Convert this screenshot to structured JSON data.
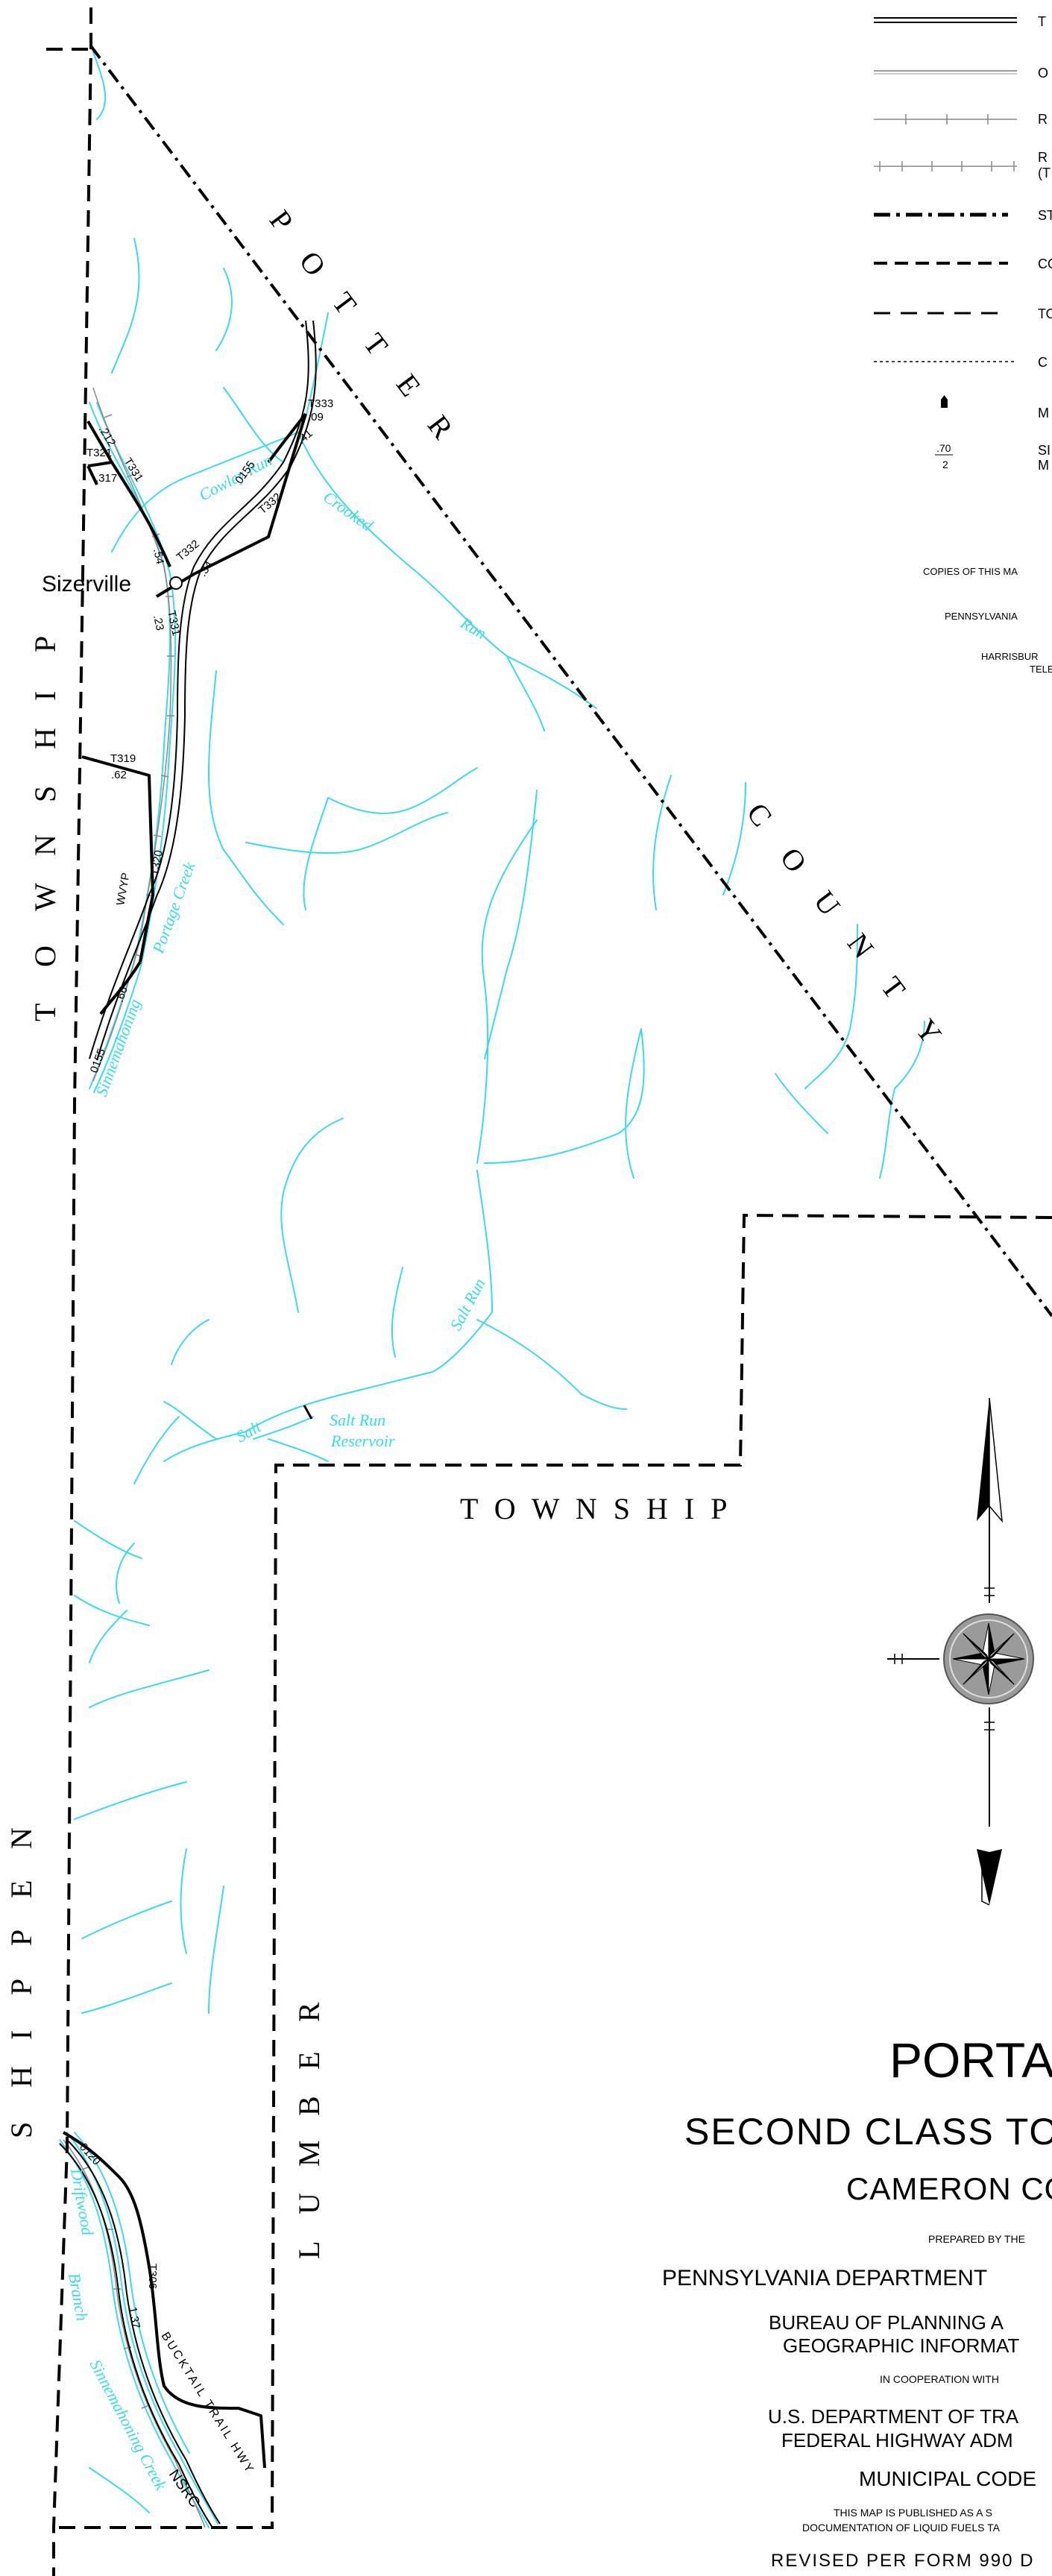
{
  "places": {
    "sizerville": "Sizerville"
  },
  "boundary_labels": {
    "potter": [
      "P",
      "O",
      "T",
      "T",
      "E",
      "R"
    ],
    "county": [
      "C",
      "O",
      "U",
      "N",
      "T",
      "Y"
    ],
    "township_left": [
      "T",
      "O",
      "W",
      "N",
      "S",
      "H",
      "I",
      "P"
    ],
    "township_center": "T O W N S H I P",
    "shippen": [
      "S",
      "H",
      "I",
      "P",
      "P",
      "E",
      "N"
    ],
    "lumber": [
      "L",
      "U",
      "M",
      "B",
      "E",
      "R"
    ]
  },
  "streams": {
    "cowley_run": "Cowley Run",
    "crooked": "Crooked",
    "run_crooked": "Run",
    "portage_creek": "Portage Creek",
    "sinnemahoning": "Sinnemahoning",
    "salt_run": "Salt Run",
    "salt": "Salt",
    "salt_run_reservoir_1": "Salt Run",
    "salt_run_reservoir_2": "Reservoir",
    "driftwood": "Driftwood",
    "branch": "Branch",
    "sinnemahoning_creek": "Sinnemahoning Creek"
  },
  "road_labels": {
    "r212": ".212",
    "t331a": "T331",
    "t321": "T321",
    "r317": ".317",
    "r54": ".54",
    "t333": "T333",
    "r09": ".09",
    "r41": ".41",
    "r0155a": "0155",
    "t332a": "T332",
    "t332b": "T332",
    "r34": ".34",
    "t331b": "T331",
    "r23": ".23",
    "t319": "T319",
    "r62": ".62",
    "wvyp": "WVYP",
    "t320": "T320",
    "r66": ".66",
    "r0155b": "0155",
    "r0120": "0120",
    "t306": "T306",
    "r137": "1.37",
    "bucktail": "BUCKTAIL TRAIL HWY",
    "nsrc": "NSRC"
  },
  "legend": {
    "items": [
      "T",
      "O",
      "R",
      "R\n(T",
      "ST",
      "CO",
      "TO",
      "C",
      "M",
      "SI\nM"
    ],
    "sample_number_top": ".70",
    "sample_number_bottom": "2",
    "copies_line": "COPIES OF THIS MA",
    "agency_line": "PENNSYLVANIA",
    "address_line1": "HARRISBUR",
    "address_line2": "TELE"
  },
  "title_block": {
    "title": "PORTAG",
    "subtitle": "SECOND CLASS TO",
    "county": "CAMERON CO",
    "prepared_by": "PREPARED BY THE",
    "department": "PENNSYLVANIA DEPARTMENT",
    "bureau_1": "BUREAU OF PLANNING A",
    "bureau_2": "GEOGRAPHIC INFORMAT",
    "cooperation": "IN COOPERATION WITH",
    "usdot": "U.S. DEPARTMENT OF TRA",
    "fhwa": "FEDERAL HIGHWAY ADM",
    "municipal_code": "MUNICIPAL CODE",
    "note_1": "THIS MAP IS PUBLISHED AS A S",
    "note_2": "DOCUMENTATION OF LIQUID FUELS TA",
    "revised": "REVISED PER FORM 990 D"
  },
  "colors": {
    "stream": "#33ddee",
    "boundary": "#000000",
    "road": "#000000",
    "rail": "#888888"
  },
  "icons": [
    "north-arrow-icon",
    "compass-rose-icon",
    "milepost-icon"
  ]
}
